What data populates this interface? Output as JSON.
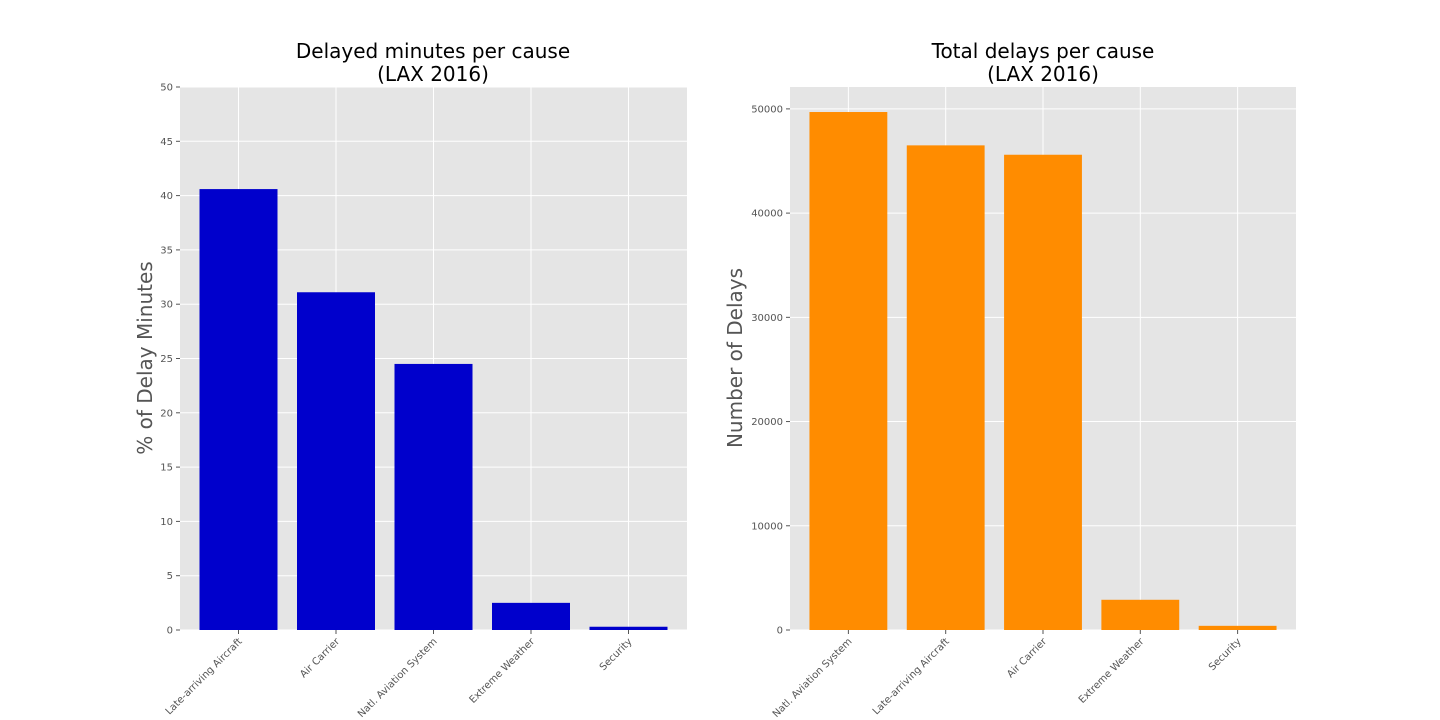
{
  "chart_data": [
    {
      "type": "bar",
      "title": [
        "Delayed minutes per cause",
        "(LAX 2016)"
      ],
      "xlabel": "",
      "ylabel": "% of Delay Minutes",
      "categories": [
        "Late-arriving Aircraft",
        "Air Carrier",
        "Natl. Aviation System",
        "Extreme Weather",
        "Security"
      ],
      "values": [
        40.6,
        31.1,
        24.5,
        2.5,
        0.3
      ],
      "ylim": [
        0,
        50
      ],
      "yticks": [
        "0",
        "5",
        "10",
        "15",
        "20",
        "25",
        "30",
        "35",
        "40",
        "45",
        "50"
      ],
      "color": "#0000cc",
      "grid": true
    },
    {
      "type": "bar",
      "title": [
        "Total delays per cause",
        "(LAX 2016)"
      ],
      "xlabel": "",
      "ylabel": "Number of Delays",
      "categories": [
        "Natl. Aviation System",
        "Late-arriving Aircraft",
        "Air Carrier",
        "Extreme Weather",
        "Security"
      ],
      "values": [
        49700,
        46500,
        45600,
        2900,
        400
      ],
      "ylim": [
        0,
        52100
      ],
      "yticks": [
        "0",
        "10000",
        "20000",
        "30000",
        "40000",
        "50000"
      ],
      "color": "#ff8c00",
      "grid": true
    }
  ]
}
